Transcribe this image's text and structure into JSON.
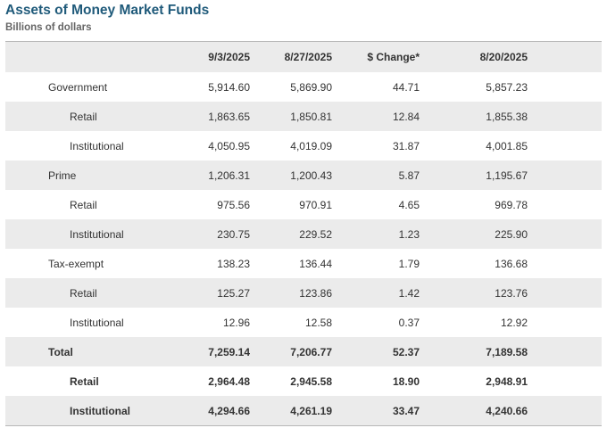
{
  "title": "Assets of Money Market Funds",
  "subtitle": "Billions of dollars",
  "table": {
    "headers": [
      "",
      "9/3/2025",
      "8/27/2025",
      "$ Change*",
      "8/20/2025"
    ],
    "rows": [
      {
        "label": "Government",
        "v1": "5,914.60",
        "v2": "5,869.90",
        "chg": "44.71",
        "v3": "5,857.23"
      },
      {
        "label": "Retail",
        "v1": "1,863.65",
        "v2": "1,850.81",
        "chg": "12.84",
        "v3": "1,855.38"
      },
      {
        "label": "Institutional",
        "v1": "4,050.95",
        "v2": "4,019.09",
        "chg": "31.87",
        "v3": "4,001.85"
      },
      {
        "label": "Prime",
        "v1": "1,206.31",
        "v2": "1,200.43",
        "chg": "5.87",
        "v3": "1,195.67"
      },
      {
        "label": "Retail",
        "v1": "975.56",
        "v2": "970.91",
        "chg": "4.65",
        "v3": "969.78"
      },
      {
        "label": "Institutional",
        "v1": "230.75",
        "v2": "229.52",
        "chg": "1.23",
        "v3": "225.90"
      },
      {
        "label": "Tax-exempt",
        "v1": "138.23",
        "v2": "136.44",
        "chg": "1.79",
        "v3": "136.68"
      },
      {
        "label": "Retail",
        "v1": "125.27",
        "v2": "123.86",
        "chg": "1.42",
        "v3": "123.76"
      },
      {
        "label": "Institutional",
        "v1": "12.96",
        "v2": "12.58",
        "chg": "0.37",
        "v3": "12.92"
      },
      {
        "label": "Total",
        "v1": "7,259.14",
        "v2": "7,206.77",
        "chg": "52.37",
        "v3": "7,189.58"
      },
      {
        "label": "Retail",
        "v1": "2,964.48",
        "v2": "2,945.58",
        "chg": "18.90",
        "v3": "2,948.91"
      },
      {
        "label": "Institutional",
        "v1": "4,294.66",
        "v2": "4,261.19",
        "chg": "33.47",
        "v3": "4,240.66"
      }
    ]
  }
}
